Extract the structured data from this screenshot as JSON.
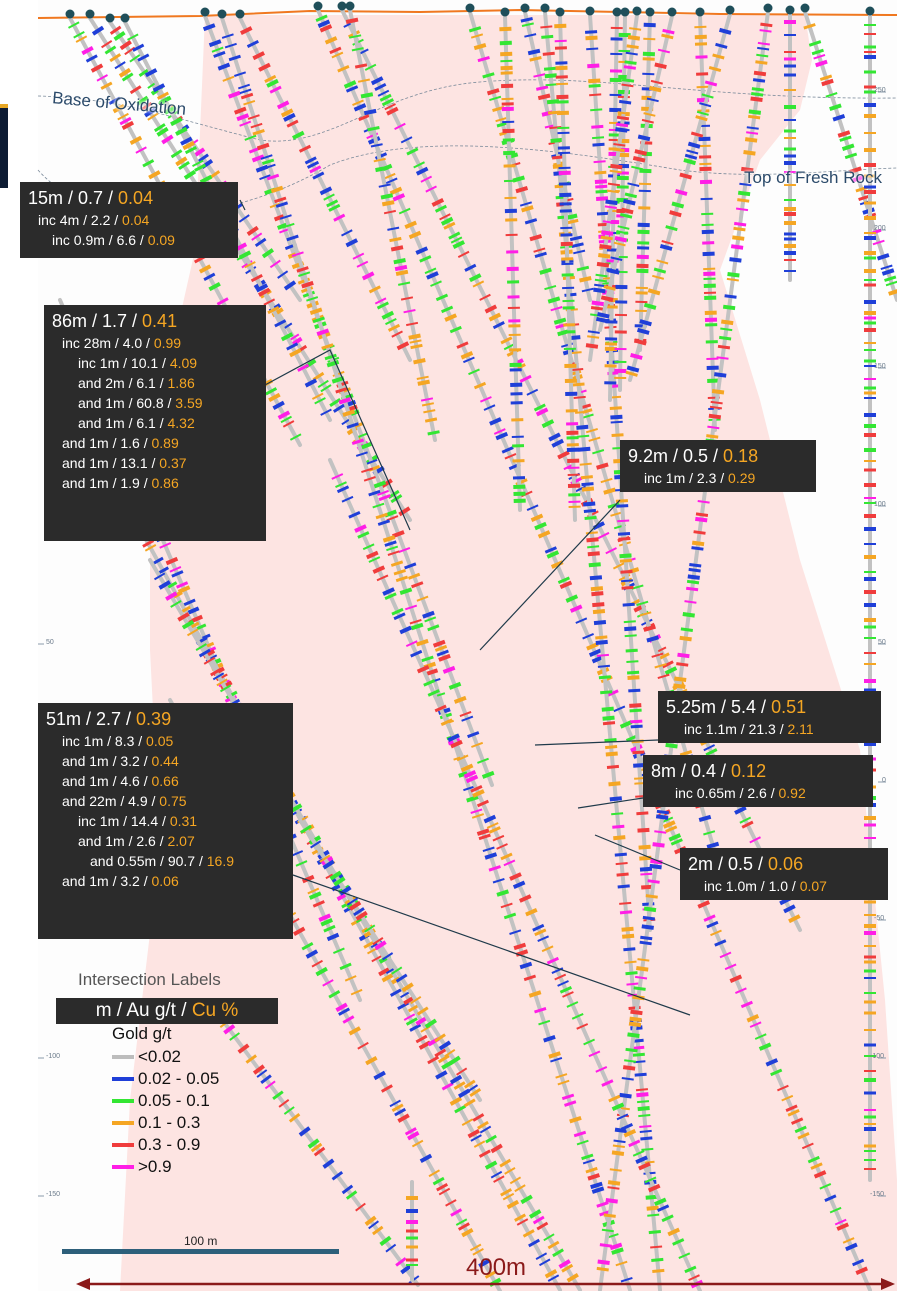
{
  "overlays": {
    "base_of_oxidation": "Base of Oxidation",
    "top_of_fresh_rock": "Top of Fresh Rock"
  },
  "elevation_ticks_right": [
    "250",
    "200",
    "150",
    "100",
    "50",
    "0",
    "-50",
    "-100",
    "-150"
  ],
  "elevation_ticks_left": [
    "50",
    "-100",
    "-150"
  ],
  "intersections": [
    {
      "id": "box1",
      "title": "15m / 0.7 / ",
      "title_cu": "0.04",
      "lines": [
        {
          "t": "inc  4m / 2.2 / ",
          "cu": "0.04"
        },
        {
          "t": "inc 0.9m / 6.6 / ",
          "cu": "0.09"
        }
      ]
    },
    {
      "id": "box2",
      "title": "86m / 1.7 / ",
      "title_cu": "0.41",
      "lines": [
        {
          "t": "inc  28m / 4.0 / ",
          "cu": "0.99"
        },
        {
          "t": "inc 1m / 10.1 / ",
          "cu": "4.09"
        },
        {
          "t": "and 2m / 6.1 / ",
          "cu": "1.86"
        },
        {
          "t": "and 1m / 60.8 / ",
          "cu": "3.59"
        },
        {
          "t": "and 1m / 6.1 / ",
          "cu": "4.32"
        },
        {
          "t": "and 1m / 1.6 / ",
          "cu": "0.89"
        },
        {
          "t": "and 1m / 13.1 / ",
          "cu": "0.37"
        },
        {
          "t": "and 1m / 1.9 / ",
          "cu": "0.86"
        }
      ]
    },
    {
      "id": "box3",
      "title": "9.2m / 0.5 / ",
      "title_cu": "0.18",
      "lines": [
        {
          "t": "inc  1m / 2.3 / ",
          "cu": "0.29"
        }
      ]
    },
    {
      "id": "box4",
      "title": "5.25m / 5.4 / ",
      "title_cu": "0.51",
      "lines": [
        {
          "t": "inc  1.1m / 21.3 / ",
          "cu": "2.11"
        }
      ]
    },
    {
      "id": "box5",
      "title": "8m / 0.4 / ",
      "title_cu": "0.12",
      "lines": [
        {
          "t": "inc  0.65m / 2.6 / ",
          "cu": "0.92"
        }
      ]
    },
    {
      "id": "box6",
      "title": "2m / 0.5 / ",
      "title_cu": "0.06",
      "lines": [
        {
          "t": "inc  1.0m / 1.0 / ",
          "cu": "0.07"
        }
      ]
    },
    {
      "id": "box7",
      "title": "51m / 2.7 / ",
      "title_cu": "0.39",
      "lines": [
        {
          "t": "inc  1m / 8.3 / ",
          "cu": "0.05"
        },
        {
          "t": "and 1m / 3.2 / ",
          "cu": "0.44"
        },
        {
          "t": "and 1m / 4.6 / ",
          "cu": "0.66"
        },
        {
          "t": "and 22m / 4.9 / ",
          "cu": "0.75"
        },
        {
          "t": "inc 1m / 14.4 / ",
          "cu": "0.31"
        },
        {
          "t": "and 1m / 2.6 / ",
          "cu": "2.07"
        },
        {
          "t": "and 0.55m / 90.7 / ",
          "cu": "16.9"
        },
        {
          "t": "and 1m / 3.2 / ",
          "cu": "0.06"
        }
      ]
    }
  ],
  "key": {
    "title": "Intersection Labels",
    "text": "m / Au g/t  / ",
    "cu": "Cu %"
  },
  "legend": {
    "title": "Gold g/t",
    "items": [
      {
        "label": "<0.02",
        "color": "#bdbdbd"
      },
      {
        "label": "0.02 - 0.05",
        "color": "#1f3fd8"
      },
      {
        "label": "0.05 - 0.1",
        "color": "#33e633"
      },
      {
        "label": "0.1 - 0.3",
        "color": "#f5a623"
      },
      {
        "label": "0.3 - 0.9",
        "color": "#f03c3c"
      },
      {
        "label": ">0.9",
        "color": "#ff1ee6"
      }
    ]
  },
  "scale_bar": "100 m",
  "section_width": "400m",
  "colors": {
    "halo": "#fde4e2",
    "label_bg": "#2b2b2b",
    "cu_text": "#f5a623",
    "topography": "#f07820",
    "collar": "#1f4f5a",
    "width_arrow": "#8b1a1a",
    "scale_bar": "#2d5f7a"
  }
}
